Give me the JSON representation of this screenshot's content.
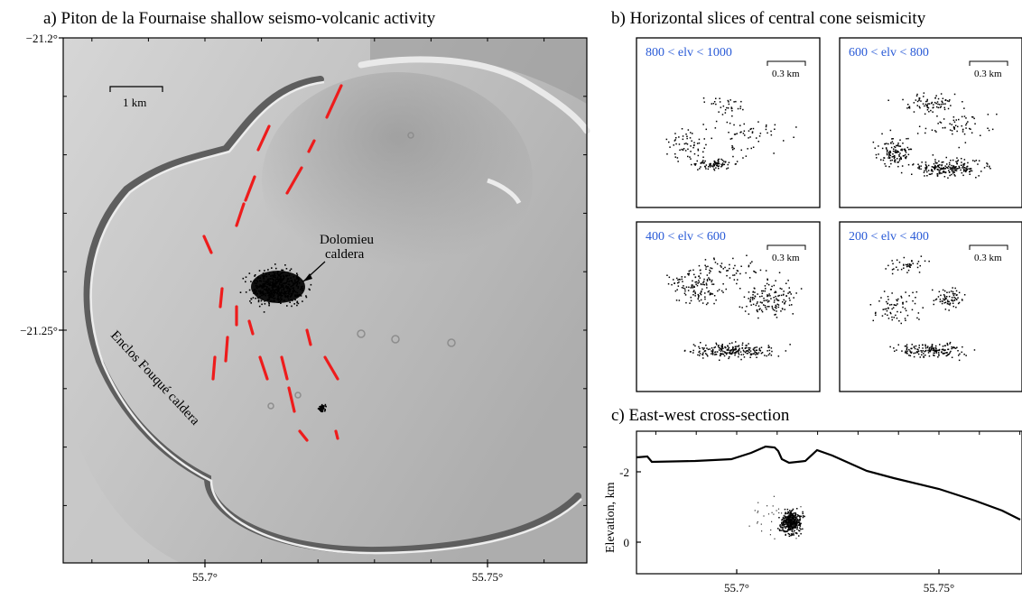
{
  "panel_a": {
    "title": "a) Piton de la Fournaise shallow seismo-volcanic activity",
    "lat_ticks": [
      {
        "value": -21.2,
        "label": "−21.2°"
      },
      {
        "value": -21.25,
        "label": "−21.25°"
      }
    ],
    "lon_ticks": [
      {
        "value": 55.7,
        "label": "55.7°"
      },
      {
        "value": 55.75,
        "label": "55.75°"
      }
    ],
    "scale_label": "1 km",
    "dolomieu_label_line1": "Dolomieu",
    "dolomieu_label_line2": "caldera",
    "enclos_label": "Enclos Fouqué caldera",
    "fissure_color": "#ee1c1c"
  },
  "panel_b": {
    "title": "b) Horizontal slices of central cone seismicity",
    "slices": [
      {
        "label": "800 < elv < 1000",
        "scale": "0.3 km"
      },
      {
        "label": "600 < elv < 800",
        "scale": "0.3 km"
      },
      {
        "label": "400 < elv < 600",
        "scale": "0.3 km"
      },
      {
        "label": "200 < elv < 400",
        "scale": "0.3 km"
      }
    ],
    "label_color": "#2a5bd7"
  },
  "panel_c": {
    "title": "c) East-west cross-section",
    "ylabel": "Elevation, km",
    "y_ticks": [
      {
        "value": -2,
        "label": "-2"
      },
      {
        "value": 0,
        "label": "0"
      }
    ],
    "x_ticks": [
      {
        "value": 55.7,
        "label": "55.7°"
      },
      {
        "value": 55.75,
        "label": "55.75°"
      }
    ]
  }
}
